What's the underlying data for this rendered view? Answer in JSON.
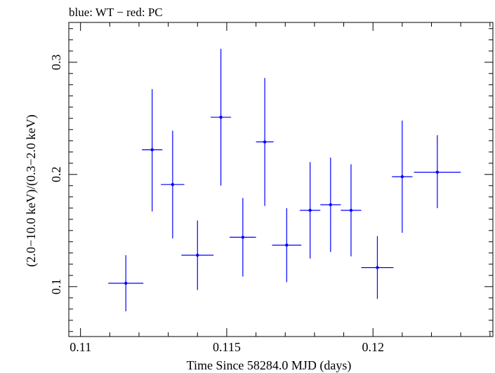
{
  "chart_data": {
    "type": "scatter",
    "title": "blue: WT − red: PC",
    "xlabel": "Time Since 58284.0 MJD (days)",
    "ylabel": "(2.0−10.0 keV)/(0.3−2.0 keV)",
    "xlim": [
      0.1096,
      0.1241
    ],
    "ylim": [
      0.0555,
      0.3355
    ],
    "xticks": [
      0.11,
      0.115,
      0.12
    ],
    "xtick_labels": [
      "0.11",
      "0.115",
      "0.12"
    ],
    "xticks_minor": [
      0.111,
      0.112,
      0.113,
      0.114,
      0.116,
      0.117,
      0.118,
      0.119,
      0.121,
      0.122,
      0.123,
      0.124
    ],
    "yticks": [
      0.1,
      0.2,
      0.3
    ],
    "ytick_labels": [
      "0.1",
      "0.2",
      "0.3"
    ],
    "yticks_minor": [
      0.06,
      0.07,
      0.08,
      0.09,
      0.11,
      0.12,
      0.13,
      0.14,
      0.15,
      0.16,
      0.17,
      0.18,
      0.19,
      0.21,
      0.22,
      0.23,
      0.24,
      0.25,
      0.26,
      0.27,
      0.28,
      0.29,
      0.31,
      0.32,
      0.33
    ],
    "series": [
      {
        "name": "WT",
        "color": "#0000ff",
        "points": [
          {
            "x": 0.11155,
            "xerr": 0.0006,
            "y": 0.103,
            "yerr_lo": 0.025,
            "yerr_hi": 0.025
          },
          {
            "x": 0.11245,
            "xerr": 0.00035,
            "y": 0.222,
            "yerr_lo": 0.055,
            "yerr_hi": 0.054
          },
          {
            "x": 0.11315,
            "xerr": 0.0004,
            "y": 0.191,
            "yerr_lo": 0.048,
            "yerr_hi": 0.048
          },
          {
            "x": 0.114,
            "xerr": 0.00055,
            "y": 0.128,
            "yerr_lo": 0.031,
            "yerr_hi": 0.031
          },
          {
            "x": 0.1148,
            "xerr": 0.00035,
            "y": 0.251,
            "yerr_lo": 0.061,
            "yerr_hi": 0.061
          },
          {
            "x": 0.11555,
            "xerr": 0.00045,
            "y": 0.144,
            "yerr_lo": 0.035,
            "yerr_hi": 0.035
          },
          {
            "x": 0.1163,
            "xerr": 0.0003,
            "y": 0.229,
            "yerr_lo": 0.057,
            "yerr_hi": 0.057
          },
          {
            "x": 0.11705,
            "xerr": 0.0005,
            "y": 0.137,
            "yerr_lo": 0.033,
            "yerr_hi": 0.033
          },
          {
            "x": 0.11785,
            "xerr": 0.00035,
            "y": 0.168,
            "yerr_lo": 0.043,
            "yerr_hi": 0.043
          },
          {
            "x": 0.11855,
            "xerr": 0.00035,
            "y": 0.173,
            "yerr_lo": 0.042,
            "yerr_hi": 0.042
          },
          {
            "x": 0.11925,
            "xerr": 0.00035,
            "y": 0.168,
            "yerr_lo": 0.041,
            "yerr_hi": 0.041
          },
          {
            "x": 0.12015,
            "xerr": 0.00055,
            "y": 0.117,
            "yerr_lo": 0.028,
            "yerr_hi": 0.028
          },
          {
            "x": 0.121,
            "xerr": 0.00035,
            "y": 0.198,
            "yerr_lo": 0.05,
            "yerr_hi": 0.05
          },
          {
            "x": 0.1222,
            "xerr": 0.0008,
            "y": 0.202,
            "yerr_lo": 0.032,
            "yerr_hi": 0.033
          }
        ]
      }
    ]
  }
}
